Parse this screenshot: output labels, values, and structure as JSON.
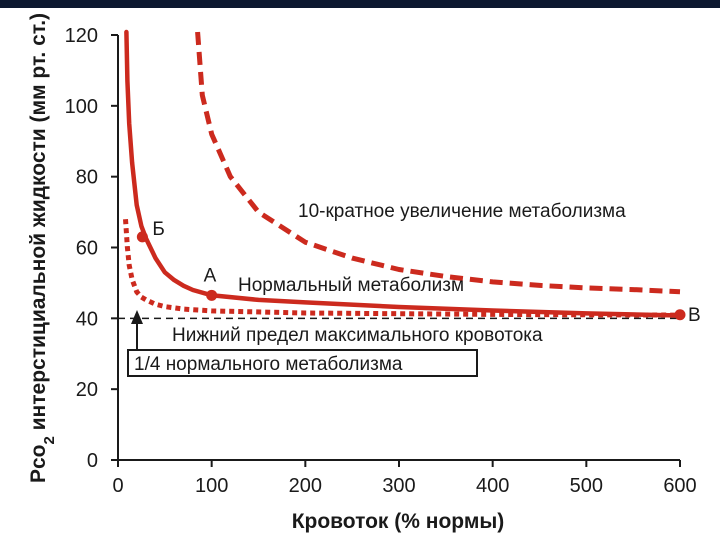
{
  "chart_data": {
    "type": "line",
    "xlabel": "Кровоток (% нормы)",
    "ylabel_main": "Pco",
    "ylabel_sub": "2",
    "ylabel_rest": " интерстициальной жидкости (мм рт. ст.)",
    "xlim": [
      0,
      600
    ],
    "ylim": [
      0,
      120
    ],
    "x_ticks": [
      0,
      100,
      200,
      300,
      400,
      500,
      600
    ],
    "y_ticks": [
      0,
      20,
      40,
      60,
      80,
      100,
      120
    ],
    "x_tick_labels": [
      "0",
      "100",
      "200",
      "300",
      "400",
      "500",
      "600"
    ],
    "y_tick_labels": [
      "0",
      "20",
      "40",
      "60",
      "80",
      "100",
      "120"
    ],
    "grid": false,
    "colors": {
      "curve": "#cc2a1e",
      "axis": "#1a1a1a",
      "topbar": "#0c1830"
    },
    "series": [
      {
        "name": "10-кратное увеличение метаболизма",
        "style": "dashed",
        "x": [
          85,
          90,
          100,
          120,
          150,
          200,
          250,
          300,
          350,
          400,
          450,
          500,
          550,
          600
        ],
        "y": [
          122,
          103,
          92,
          80,
          70,
          61.5,
          57,
          53.8,
          51.8,
          50.3,
          49.3,
          48.6,
          48.1,
          47.5
        ]
      },
      {
        "name": "Нормальный метаболизм",
        "style": "solid",
        "x": [
          9,
          10,
          12,
          15,
          20,
          25,
          30,
          40,
          50,
          60,
          70,
          80,
          100,
          150,
          200,
          300,
          400,
          500,
          600
        ],
        "y": [
          122,
          107,
          95,
          84,
          72,
          66,
          62.5,
          57,
          53,
          50.8,
          49.2,
          48,
          46.5,
          45.2,
          44.5,
          43.2,
          42.2,
          41.4,
          40.8
        ]
      },
      {
        "name": "1/4 нормального метаболизма",
        "style": "dotted",
        "x": [
          8,
          10,
          12,
          15,
          20,
          25,
          30,
          40,
          50,
          70,
          100,
          200,
          300,
          400,
          500,
          600
        ],
        "y": [
          68,
          60,
          55,
          51,
          47.5,
          46,
          45.2,
          44,
          43.3,
          42.6,
          42.1,
          41.5,
          41.3,
          41.1,
          41,
          40.9
        ]
      }
    ],
    "reference_line": {
      "label": "Нижний предел максимального кровотока",
      "y": 40
    },
    "points": [
      {
        "label": "Б",
        "x": 26,
        "y": 63
      },
      {
        "label": "А",
        "x": 100,
        "y": 46.5
      },
      {
        "label": "В",
        "x": 600,
        "y": 41
      }
    ],
    "annotations": {
      "ten_fold": "10-кратное увеличение метаболизма",
      "normal": "Нормальный метаболизм",
      "lower_limit": "Нижний предел максимального кровотока",
      "quarter": "1/4 нормального метаболизма"
    }
  }
}
